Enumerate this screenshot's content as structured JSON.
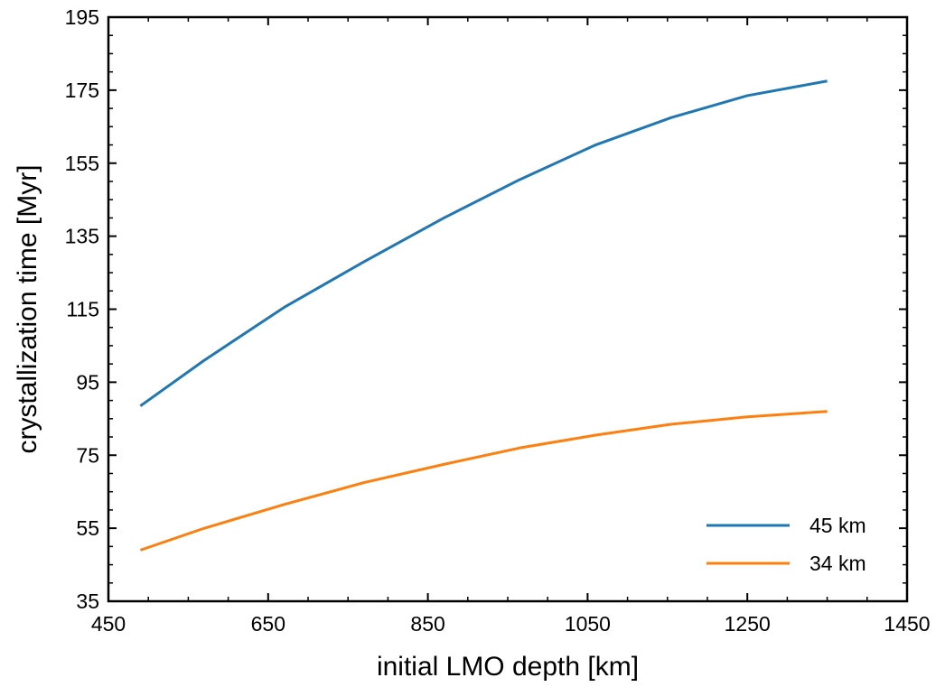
{
  "chart_data": {
    "type": "line",
    "title": "",
    "xlabel": "initial LMO depth [km]",
    "ylabel": "crystallization time [Myr]",
    "xlim": [
      450,
      1450
    ],
    "ylim": [
      35,
      195
    ],
    "xticks": [
      450,
      650,
      850,
      1050,
      1250,
      1450
    ],
    "yticks": [
      35,
      55,
      75,
      95,
      115,
      135,
      155,
      175,
      195
    ],
    "xtick_labels": [
      "450",
      "650",
      "850",
      "1050",
      "1250",
      "1450"
    ],
    "ytick_labels": [
      "35",
      "55",
      "75",
      "95",
      "115",
      "135",
      "155",
      "175",
      "195"
    ],
    "grid": false,
    "legend_position": "lower-right",
    "series": [
      {
        "name": "45 km",
        "color": "#1f77b4",
        "x": [
          490,
          570,
          670,
          770,
          870,
          965,
          1060,
          1155,
          1250,
          1350
        ],
        "y": [
          88.5,
          101,
          115.5,
          128,
          140,
          150.5,
          160,
          167.5,
          173.5,
          177.5
        ]
      },
      {
        "name": "34 km",
        "color": "#ff7f0e",
        "x": [
          490,
          570,
          670,
          770,
          870,
          965,
          1060,
          1155,
          1250,
          1350
        ],
        "y": [
          49,
          55,
          61.5,
          67.5,
          72.5,
          77,
          80.5,
          83.5,
          85.5,
          87
        ]
      }
    ]
  }
}
